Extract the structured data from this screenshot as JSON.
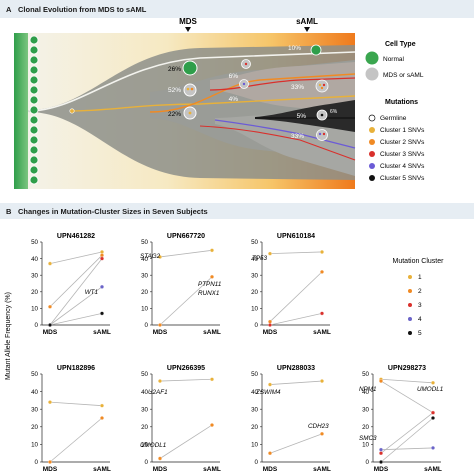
{
  "panel_a": {
    "letter": "A",
    "title": "Clonal Evolution from MDS to sAML",
    "timepoints": [
      "MDS",
      "sAML"
    ],
    "percent_labels": {
      "normal_mds": "26%",
      "c2_mds": "52%",
      "c1_mds": "22%",
      "c3_mid": "6%",
      "c4_mid": "4%",
      "normal_saml": "10%",
      "c3_saml": "33%",
      "c5_saml": "5%",
      "c5b_saml": "6%",
      "c4_saml": "33%"
    },
    "legend": {
      "cell_type_title": "Cell Type",
      "cell_types": [
        {
          "label": "Normal",
          "color": "#3aa64f"
        },
        {
          "label": "MDS or sAML",
          "color": "#c4c4c4"
        }
      ],
      "mutations_title": "Mutations",
      "mutations": [
        {
          "label": "Germline",
          "color": "#ffffff"
        },
        {
          "label": "Cluster 1 SNVs",
          "color": "#e8b13a"
        },
        {
          "label": "Cluster 2 SNVs",
          "color": "#f08a24"
        },
        {
          "label": "Cluster 3 SNVs",
          "color": "#d9302c"
        },
        {
          "label": "Cluster 4 SNVs",
          "color": "#6b5bd6"
        },
        {
          "label": "Cluster 5 SNVs",
          "color": "#111111"
        }
      ]
    }
  },
  "panel_b": {
    "letter": "B",
    "title": "Changes in Mutation-Cluster Sizes in Seven Subjects",
    "ylabel": "Mutant Allele Frequency (%)",
    "xcats": [
      "MDS",
      "sAML"
    ],
    "legend_title": "Mutation Cluster",
    "clusters": [
      {
        "label": "1",
        "color": "#e8b13a"
      },
      {
        "label": "2",
        "color": "#f08a24"
      },
      {
        "label": "3",
        "color": "#d9302c"
      },
      {
        "label": "4",
        "color": "#6a63c8"
      },
      {
        "label": "5",
        "color": "#111111"
      }
    ]
  },
  "chart_data": [
    {
      "type": "line",
      "title": "UPN461282",
      "x": [
        "MDS",
        "sAML"
      ],
      "ylim": [
        0,
        50
      ],
      "yticks": [
        0,
        10,
        20,
        30,
        40,
        50
      ],
      "series": [
        {
          "cluster": "1",
          "values": [
            37,
            44
          ]
        },
        {
          "cluster": "2",
          "values": [
            11,
            42
          ]
        },
        {
          "cluster": "3",
          "values": [
            0,
            40
          ]
        },
        {
          "cluster": "4",
          "values": [
            0,
            23
          ]
        },
        {
          "cluster": "5",
          "values": [
            0,
            7
          ]
        }
      ],
      "annotations": [
        "WT1"
      ]
    },
    {
      "type": "line",
      "title": "UPN667720",
      "x": [
        "MDS",
        "sAML"
      ],
      "ylim": [
        0,
        50
      ],
      "yticks": [
        0,
        10,
        20,
        30,
        40,
        50
      ],
      "series": [
        {
          "cluster": "1",
          "values": [
            41,
            45
          ]
        },
        {
          "cluster": "2",
          "values": [
            0,
            29
          ]
        }
      ],
      "annotations": [
        "STAG2",
        "PTPN11",
        "RUNX1"
      ]
    },
    {
      "type": "line",
      "title": "UPN610184",
      "x": [
        "MDS",
        "sAML"
      ],
      "ylim": [
        0,
        50
      ],
      "yticks": [
        0,
        10,
        20,
        30,
        40,
        50
      ],
      "series": [
        {
          "cluster": "1",
          "values": [
            43,
            44
          ]
        },
        {
          "cluster": "2",
          "values": [
            2,
            32
          ]
        },
        {
          "cluster": "3",
          "values": [
            0,
            7
          ]
        }
      ],
      "annotations": [
        "TP53"
      ]
    },
    {
      "type": "line",
      "title": "UPN182896",
      "x": [
        "MDS",
        "sAML"
      ],
      "ylim": [
        0,
        50
      ],
      "yticks": [
        0,
        10,
        20,
        30,
        40,
        50
      ],
      "series": [
        {
          "cluster": "1",
          "values": [
            34,
            32
          ]
        },
        {
          "cluster": "2",
          "values": [
            0,
            25
          ]
        }
      ],
      "annotations": []
    },
    {
      "type": "line",
      "title": "UPN266395",
      "x": [
        "MDS",
        "sAML"
      ],
      "ylim": [
        0,
        50
      ],
      "yticks": [
        0,
        10,
        20,
        30,
        40,
        50
      ],
      "series": [
        {
          "cluster": "1",
          "values": [
            46,
            47
          ]
        },
        {
          "cluster": "2",
          "values": [
            2,
            21
          ]
        }
      ],
      "annotations": [
        "U2AF1",
        "UMODL1"
      ]
    },
    {
      "type": "line",
      "title": "UPN288033",
      "x": [
        "MDS",
        "sAML"
      ],
      "ylim": [
        0,
        50
      ],
      "yticks": [
        0,
        10,
        20,
        30,
        40,
        50
      ],
      "series": [
        {
          "cluster": "1",
          "values": [
            44,
            46
          ]
        },
        {
          "cluster": "2",
          "values": [
            5,
            16
          ]
        }
      ],
      "annotations": [
        "ZSWIM4",
        "CDH23"
      ]
    },
    {
      "type": "line",
      "title": "UPN298273",
      "x": [
        "MDS",
        "sAML"
      ],
      "ylim": [
        0,
        50
      ],
      "yticks": [
        0,
        10,
        20,
        30,
        40,
        50
      ],
      "series": [
        {
          "cluster": "1",
          "values": [
            47,
            45
          ]
        },
        {
          "cluster": "2",
          "values": [
            46,
            28
          ]
        },
        {
          "cluster": "3",
          "values": [
            5,
            28
          ]
        },
        {
          "cluster": "4",
          "values": [
            7,
            8
          ]
        },
        {
          "cluster": "5",
          "values": [
            0,
            25
          ]
        }
      ],
      "annotations": [
        "NPM1",
        "UMODL1",
        "SMC3"
      ]
    }
  ]
}
